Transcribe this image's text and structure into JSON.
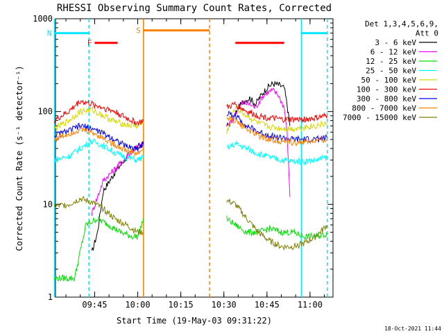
{
  "colors": {
    "3-6": "#000000",
    "6-12": "#ff00ff",
    "12-25": "#00e000",
    "25-50": "#00ffff",
    "50-100": "#d8d800",
    "100-300": "#ff0000",
    "300-800": "#0000ff",
    "800-7000": "#ff8000",
    "7000-15000": "#808000",
    "attenuator": "#00e5ff",
    "flag_red": "#ff0000",
    "saa_orange": "#ff8000"
  },
  "chart_data": {
    "type": "line",
    "title": "RHESSI Observing Summary Count Rates, Corrected",
    "xlabel": "Start Time (19-May-03 09:31:22)",
    "ylabel": "Corrected Count Rate (s⁻¹ detector⁻¹)",
    "yscale": "log",
    "ylim": [
      1,
      1000
    ],
    "xlim": [
      "09:31:22",
      "11:08:00"
    ],
    "x_ticks": [
      "09:45",
      "10:00",
      "10:15",
      "10:30",
      "10:45",
      "11:00"
    ],
    "y_ticks": [
      "1",
      "10",
      "100",
      "1000"
    ],
    "grid": false,
    "legend_title": [
      "Det 1,3,4,5,6,9,",
      "Att 0"
    ],
    "legend_position": "right",
    "series": [
      {
        "name": "3 - 6 keV",
        "color_key": "3-6",
        "x": [
          "09:44",
          "09:46",
          "09:48",
          "09:52",
          "09:56",
          "09:59",
          "10:02",
          "10:25",
          "10:31",
          "10:33",
          "10:35",
          "10:37",
          "10:39",
          "10:41",
          "10:43",
          "10:45",
          "10:47",
          "10:49",
          "10:51",
          "10:52",
          "10:53"
        ],
        "y": [
          3,
          5,
          14,
          22,
          32,
          40,
          45,
          null,
          70,
          80,
          110,
          130,
          140,
          120,
          150,
          180,
          200,
          195,
          180,
          120,
          70
        ]
      },
      {
        "name": "6 - 12 keV",
        "color_key": "6-12",
        "x": [
          "09:44",
          "09:46",
          "09:48",
          "09:52",
          "09:56",
          "09:59",
          "10:02",
          "10:25",
          "10:31",
          "10:33",
          "10:35",
          "10:37",
          "10:39",
          "10:41",
          "10:43",
          "10:45",
          "10:47",
          "10:49",
          "10:51",
          "10:52",
          "10:53"
        ],
        "y": [
          8,
          12,
          18,
          24,
          32,
          40,
          45,
          null,
          70,
          80,
          110,
          125,
          120,
          110,
          140,
          160,
          170,
          150,
          110,
          60,
          12
        ]
      },
      {
        "name": "12 - 25 keV",
        "color_key": "12-25",
        "x": [
          "09:31",
          "09:38",
          "09:42",
          "09:46",
          "09:50",
          "09:54",
          "09:58",
          "10:00",
          "10:02",
          "10:25",
          "10:31",
          "10:34",
          "10:38",
          "10:42",
          "10:46",
          "10:50",
          "10:54",
          "10:58",
          "11:02",
          "11:06"
        ],
        "y": [
          1.6,
          1.6,
          6,
          7,
          6,
          5,
          4.5,
          4.5,
          7,
          null,
          7,
          6,
          5,
          5,
          5.5,
          5,
          5,
          4.5,
          4.5,
          4.8
        ]
      },
      {
        "name": "25 - 50 keV",
        "color_key": "25-50",
        "x": [
          "09:31",
          "09:36",
          "09:40",
          "09:44",
          "09:48",
          "09:52",
          "09:56",
          "10:00",
          "10:02",
          "10:25",
          "10:31",
          "10:34",
          "10:38",
          "10:42",
          "10:46",
          "10:50",
          "10:54",
          "10:58",
          "11:02",
          "11:06"
        ],
        "y": [
          30,
          33,
          40,
          48,
          43,
          36,
          32,
          30,
          32,
          null,
          40,
          45,
          40,
          35,
          32,
          30,
          29,
          29,
          30,
          32
        ]
      },
      {
        "name": "50 - 100 keV",
        "color_key": "50-100",
        "x": [
          "09:31",
          "09:36",
          "09:40",
          "09:44",
          "09:48",
          "09:52",
          "09:56",
          "10:00",
          "10:02",
          "10:25",
          "10:31",
          "10:34",
          "10:38",
          "10:42",
          "10:46",
          "10:50",
          "10:54",
          "10:58",
          "11:02",
          "11:06"
        ],
        "y": [
          65,
          80,
          100,
          105,
          90,
          78,
          72,
          70,
          75,
          null,
          60,
          110,
          90,
          75,
          68,
          66,
          65,
          68,
          70,
          75
        ]
      },
      {
        "name": "100 - 300 keV",
        "color_key": "100-300",
        "x": [
          "09:31",
          "09:36",
          "09:40",
          "09:44",
          "09:48",
          "09:52",
          "09:56",
          "10:00",
          "10:02",
          "10:25",
          "10:31",
          "10:34",
          "10:38",
          "10:42",
          "10:46",
          "10:50",
          "10:54",
          "10:58",
          "11:02",
          "11:06"
        ],
        "y": [
          80,
          100,
          130,
          120,
          110,
          100,
          85,
          75,
          80,
          null,
          110,
          120,
          100,
          90,
          85,
          82,
          82,
          82,
          85,
          90
        ]
      },
      {
        "name": "300 - 800 keV",
        "color_key": "300-800",
        "x": [
          "09:31",
          "09:36",
          "09:40",
          "09:44",
          "09:48",
          "09:52",
          "09:56",
          "10:00",
          "10:02",
          "10:25",
          "10:31",
          "10:34",
          "10:38",
          "10:42",
          "10:46",
          "10:50",
          "10:54",
          "10:58",
          "11:02",
          "11:06"
        ],
        "y": [
          55,
          62,
          70,
          66,
          58,
          50,
          42,
          40,
          45,
          null,
          95,
          90,
          70,
          60,
          55,
          52,
          50,
          50,
          50,
          52
        ]
      },
      {
        "name": "800 - 7000 keV",
        "color_key": "800-7000",
        "x": [
          "09:31",
          "09:36",
          "09:40",
          "09:44",
          "09:48",
          "09:52",
          "09:56",
          "10:00",
          "10:02",
          "10:25",
          "10:31",
          "10:34",
          "10:38",
          "10:42",
          "10:46",
          "10:50",
          "10:54",
          "10:58",
          "11:02",
          "11:06"
        ],
        "y": [
          50,
          58,
          64,
          60,
          52,
          44,
          38,
          35,
          40,
          null,
          85,
          80,
          65,
          55,
          50,
          48,
          46,
          47,
          48,
          50
        ]
      },
      {
        "name": "7000 - 15000 keV",
        "color_key": "7000-15000",
        "x": [
          "09:31",
          "09:36",
          "09:40",
          "09:44",
          "09:48",
          "09:52",
          "09:56",
          "10:00",
          "10:02",
          "10:25",
          "10:31",
          "10:34",
          "10:38",
          "10:42",
          "10:46",
          "10:50",
          "10:54",
          "10:58",
          "11:02",
          "11:06"
        ],
        "y": [
          9.5,
          10,
          11.5,
          10.5,
          9,
          7,
          6,
          5,
          5,
          null,
          11,
          10,
          7,
          5,
          4,
          3.5,
          3.5,
          3.8,
          4.5,
          6
        ]
      }
    ],
    "annotations": [
      {
        "label": "N",
        "color_key": "attenuator",
        "segment_x": [
          "09:31",
          "09:43"
        ],
        "y": 700
      },
      {
        "label": "",
        "color_key": "attenuator",
        "segment_x": [
          "10:57",
          "11:06"
        ],
        "y": 700
      },
      {
        "label": "F",
        "color_key": "flag_red",
        "segment_x": [
          "09:45",
          "09:53"
        ],
        "y": 550
      },
      {
        "label": "",
        "color_key": "flag_red",
        "segment_x": [
          "10:34",
          "10:51"
        ],
        "y": 550
      },
      {
        "label": "S",
        "color_key": "saa_orange",
        "segment_x": [
          "10:02",
          "10:25"
        ],
        "y": 750
      }
    ],
    "vertical_markers": [
      {
        "x": "09:31",
        "style": "solid",
        "color_key": "attenuator"
      },
      {
        "x": "09:43",
        "style": "dashed",
        "color_key": "attenuator"
      },
      {
        "x": "10:02",
        "style": "solid",
        "color_key": "saa_orange"
      },
      {
        "x": "10:25",
        "style": "dashed",
        "color_key": "saa_orange"
      },
      {
        "x": "10:57",
        "style": "solid",
        "color_key": "attenuator"
      },
      {
        "x": "11:06",
        "style": "dashed",
        "color_key": "attenuator"
      }
    ]
  },
  "footer": {
    "timestamp": "18-Oct-2021 11:44"
  }
}
